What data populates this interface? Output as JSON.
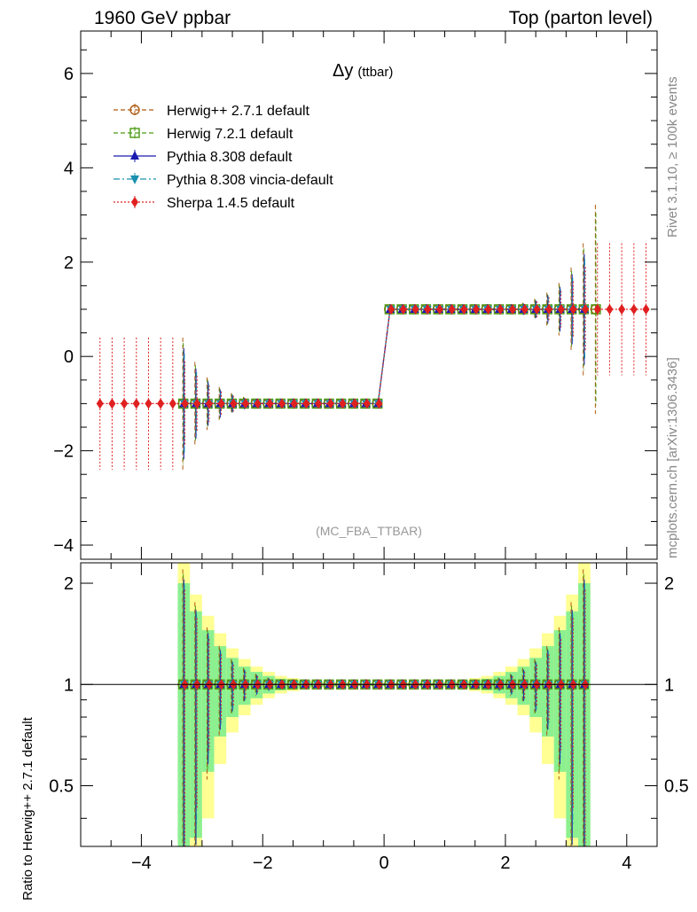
{
  "header": {
    "left": "1960 GeV ppbar",
    "right": "Top (parton level)"
  },
  "side_labels": {
    "upper": "Rivet 3.1.10, ≥ 100k events",
    "lower": "mcplots.cern.ch [arXiv:1306.3436]"
  },
  "main_plot": {
    "title": "Δy",
    "title_suffix": "(ttbar)",
    "watermark": "(MC_FBA_TTBAR)",
    "ylim": [
      -4.3,
      6.9
    ],
    "yticks": [
      -4,
      -2,
      0,
      2,
      4,
      6
    ],
    "ytick_labels": [
      "−4",
      "−2",
      "0",
      "2",
      "4",
      "6"
    ]
  },
  "ratio_plot": {
    "ylabel": "Ratio to Herwig++ 2.7.1 default",
    "ylim": [
      0.33,
      2.3
    ],
    "yticks": [
      0.5,
      1,
      2
    ],
    "ytick_labels": [
      "0.5",
      "1",
      "2"
    ]
  },
  "x_axis": {
    "xlim": [
      -5,
      4.5
    ],
    "xticks": [
      -4,
      -2,
      0,
      2,
      4
    ],
    "xtick_labels": [
      "−4",
      "−2",
      "0",
      "2",
      "4"
    ]
  },
  "legend": [
    {
      "label": "Herwig++ 2.7.1 default",
      "color": "#b05a10",
      "dash": "5,3",
      "marker": "circle-open"
    },
    {
      "label": "Herwig 7.2.1 default",
      "color": "#4a9a10",
      "dash": "5,3",
      "marker": "square-open"
    },
    {
      "label": "Pythia 8.308 default",
      "color": "#1a1ab0",
      "dash": "",
      "marker": "triangle-up"
    },
    {
      "label": "Pythia 8.308 vincia-default",
      "color": "#1a90b0",
      "dash": "7,3,2,3",
      "marker": "triangle-down"
    },
    {
      "label": "Sherpa 1.4.5 default",
      "color": "#e02020",
      "dash": "2,2",
      "marker": "diamond"
    }
  ],
  "chart_data": {
    "type": "line",
    "x": [
      -4.7,
      -4.5,
      -4.3,
      -4.1,
      -3.9,
      -3.7,
      -3.5,
      -3.3,
      -3.1,
      -2.9,
      -2.7,
      -2.5,
      -2.3,
      -2.1,
      -1.9,
      -1.7,
      -1.5,
      -1.3,
      -1.1,
      -0.9,
      -0.7,
      -0.5,
      -0.3,
      -0.1,
      0.1,
      0.3,
      0.5,
      0.7,
      0.9,
      1.1,
      1.3,
      1.5,
      1.7,
      1.9,
      2.1,
      2.3,
      2.5,
      2.7,
      2.9,
      3.1,
      3.3,
      3.5,
      3.7,
      3.9,
      4.1,
      4.3
    ],
    "series": [
      {
        "name": "Herwig++ 2.7.1 default",
        "x_range": [
          -3.3,
          3.5
        ],
        "value_neg": -1,
        "value_pos": 1
      },
      {
        "name": "Herwig 7.2.1 default",
        "x_range": [
          -3.3,
          3.5
        ],
        "value_neg": -1,
        "value_pos": 1
      },
      {
        "name": "Pythia 8.308 default",
        "x_range": [
          -3.3,
          3.3
        ],
        "value_neg": -1,
        "value_pos": 1
      },
      {
        "name": "Pythia 8.308 vincia-default",
        "x_range": [
          -3.3,
          3.3
        ],
        "value_neg": -1,
        "value_pos": 1
      },
      {
        "name": "Sherpa 1.4.5 default",
        "x_range": [
          -4.7,
          4.3
        ],
        "value_neg": -1,
        "value_pos": 1
      }
    ],
    "ratio_band_halfwidth": [
      {
        "x": -3.3,
        "green": 1.0,
        "yellow": 1.3
      },
      {
        "x": -3.1,
        "green": 0.65,
        "yellow": 0.85
      },
      {
        "x": -2.9,
        "green": 0.45,
        "yellow": 0.6
      },
      {
        "x": -2.7,
        "green": 0.3,
        "yellow": 0.42
      },
      {
        "x": -2.5,
        "green": 0.2,
        "yellow": 0.28
      },
      {
        "x": -2.3,
        "green": 0.13,
        "yellow": 0.19
      },
      {
        "x": -2.1,
        "green": 0.09,
        "yellow": 0.13
      },
      {
        "x": -1.9,
        "green": 0.06,
        "yellow": 0.09
      },
      {
        "x": -1.7,
        "green": 0.04,
        "yellow": 0.06
      },
      {
        "x": -1.5,
        "green": 0.03,
        "yellow": 0.045
      },
      {
        "x": -1.3,
        "green": 0.02,
        "yellow": 0.03
      },
      {
        "x": -1.1,
        "green": 0.015,
        "yellow": 0.022
      },
      {
        "x": -0.9,
        "green": 0.012,
        "yellow": 0.018
      },
      {
        "x": -0.7,
        "green": 0.01,
        "yellow": 0.015
      },
      {
        "x": -0.5,
        "green": 0.01,
        "yellow": 0.013
      },
      {
        "x": -0.3,
        "green": 0.01,
        "yellow": 0.012
      },
      {
        "x": -0.1,
        "green": 0.01,
        "yellow": 0.012
      },
      {
        "x": 0.1,
        "green": 0.01,
        "yellow": 0.012
      },
      {
        "x": 0.3,
        "green": 0.01,
        "yellow": 0.012
      },
      {
        "x": 0.5,
        "green": 0.01,
        "yellow": 0.013
      },
      {
        "x": 0.7,
        "green": 0.01,
        "yellow": 0.015
      },
      {
        "x": 0.9,
        "green": 0.012,
        "yellow": 0.018
      },
      {
        "x": 1.1,
        "green": 0.015,
        "yellow": 0.022
      },
      {
        "x": 1.3,
        "green": 0.02,
        "yellow": 0.03
      },
      {
        "x": 1.5,
        "green": 0.03,
        "yellow": 0.045
      },
      {
        "x": 1.7,
        "green": 0.04,
        "yellow": 0.06
      },
      {
        "x": 1.9,
        "green": 0.06,
        "yellow": 0.09
      },
      {
        "x": 2.1,
        "green": 0.09,
        "yellow": 0.13
      },
      {
        "x": 2.3,
        "green": 0.13,
        "yellow": 0.19
      },
      {
        "x": 2.5,
        "green": 0.2,
        "yellow": 0.28
      },
      {
        "x": 2.7,
        "green": 0.3,
        "yellow": 0.42
      },
      {
        "x": 2.9,
        "green": 0.45,
        "yellow": 0.6
      },
      {
        "x": 3.1,
        "green": 0.65,
        "yellow": 0.85
      },
      {
        "x": 3.3,
        "green": 1.0,
        "yellow": 1.3
      }
    ],
    "xlim": [
      -5,
      4.5
    ],
    "ylim": [
      -4.3,
      6.9
    ],
    "xlabel": "",
    "ylabel": "",
    "title": "Δy (ttbar)"
  }
}
